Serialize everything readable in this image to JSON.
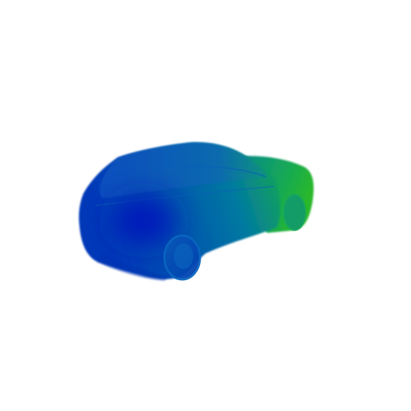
{
  "scene": {
    "subject": "car-depth-render",
    "background_color": "#ffffff",
    "colormap": {
      "near": "#0000c0",
      "mid": "#0050b0",
      "far": "#0aa060",
      "farthest": "#2ab82a"
    }
  }
}
